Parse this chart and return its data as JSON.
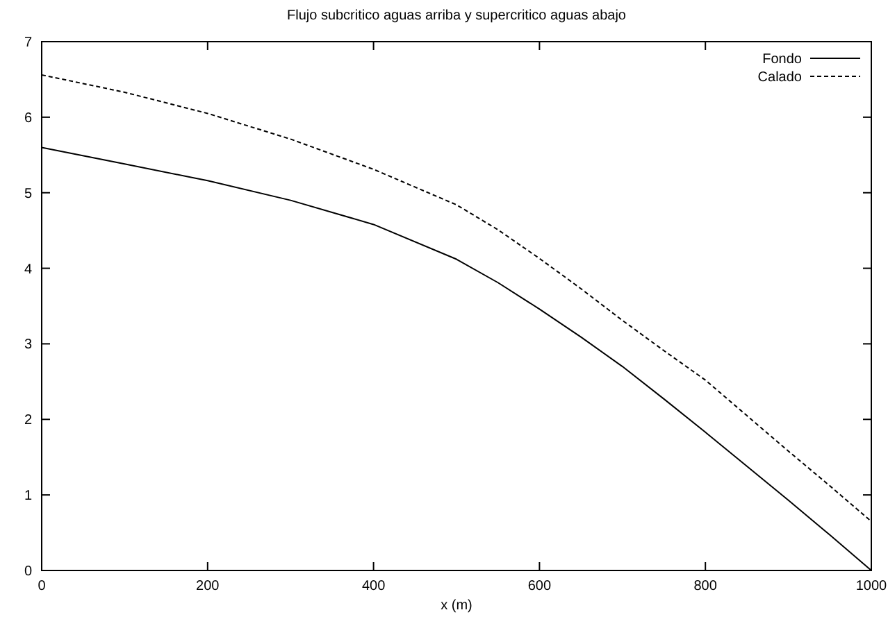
{
  "chart_data": {
    "type": "line",
    "title": "Flujo subcritico aguas arriba y supercritico aguas abajo",
    "xlabel": "x (m)",
    "x": [
      0,
      100,
      200,
      300,
      400,
      500,
      550,
      600,
      650,
      700,
      750,
      800,
      850,
      900,
      950,
      1000
    ],
    "series": [
      {
        "name": "Fondo",
        "color": "#000000",
        "line_style": "solid",
        "values": [
          5.6,
          5.38,
          5.16,
          4.9,
          4.58,
          4.12,
          3.81,
          3.46,
          3.09,
          2.7,
          2.27,
          1.83,
          1.38,
          0.93,
          0.47,
          0
        ]
      },
      {
        "name": "Calado",
        "color": "#000000",
        "line_style": "dashed",
        "values": [
          6.56,
          6.33,
          6.05,
          5.71,
          5.31,
          4.84,
          4.51,
          4.13,
          3.73,
          3.31,
          2.91,
          2.52,
          2.05,
          1.58,
          1.12,
          0.65
        ]
      }
    ],
    "xlim": [
      0,
      1000
    ],
    "ylim": [
      0,
      7
    ],
    "xticks": [
      0,
      200,
      400,
      600,
      800,
      1000
    ],
    "yticks": [
      0,
      1,
      2,
      3,
      4,
      5,
      6,
      7
    ],
    "legend": "top right",
    "grid": false,
    "marker": "none"
  }
}
